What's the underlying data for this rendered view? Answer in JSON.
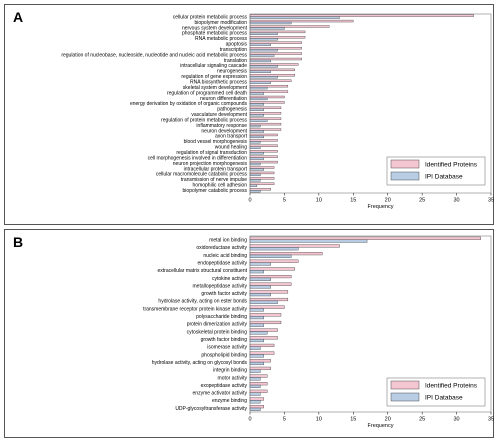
{
  "chart_data": [
    {
      "panel": "A",
      "type": "bar",
      "orientation": "horizontal",
      "xlabel": "Frequency",
      "xlim": [
        0,
        35
      ],
      "xticks": [
        0,
        5,
        10,
        15,
        20,
        25,
        30,
        35
      ],
      "legend_position": "bottom-right",
      "categories": [
        "cellular protein metabolic process",
        "biopolymer modification",
        "nervous system development",
        "phosphate metabolic process",
        "RNA metabolic process",
        "apoptosis",
        "transcription",
        "regulation of nucleobase, nucleoside, nucleotide and nucleic acid metabolic process",
        "translation",
        "intracellular signaling cascade",
        "neurogenesis",
        "regulation of gene expression",
        "RNA biosynthetic process",
        "skeletal system development",
        "regulation of programmed cell death",
        "neuron differentiation",
        "energy derivation by oxidation of organic compounds",
        "pathogenesis",
        "vasculature development",
        "regulation of protein metabolic process",
        "inflammatory response",
        "neuron development",
        "axon transport",
        "blood vessel morphogenesis",
        "wound healing",
        "regulation of signal transduction",
        "cell morphogenesis involved in differentiation",
        "neuron projection morphogenesis",
        "intracellular protein transport",
        "cellular macromolecule catabolic process",
        "transmission of nerve impulse",
        "homophilic cell adhesion",
        "biopolymer catabolic process"
      ],
      "series": [
        {
          "name": "Identified Proteins",
          "color": "#f4c6d2",
          "values": [
            32.5,
            15,
            11.5,
            8,
            8,
            7.5,
            7.5,
            7.5,
            7.5,
            7,
            6.5,
            6.5,
            6,
            5.5,
            5.5,
            5,
            5,
            4.5,
            4.5,
            4.5,
            4.5,
            4.5,
            4,
            4,
            4,
            4,
            4,
            4,
            3.5,
            3.5,
            3.5,
            3.5,
            3
          ]
        },
        {
          "name": "IPI Database",
          "color": "#b8cce4",
          "values": [
            13,
            6,
            5,
            4,
            4,
            3,
            4,
            3.5,
            3,
            4,
            3,
            4,
            3,
            2.5,
            2,
            2.5,
            2,
            2,
            2,
            2.5,
            1.5,
            2,
            2,
            1.5,
            1.5,
            2,
            2,
            1.5,
            2,
            1.5,
            1.5,
            1,
            1.5
          ]
        }
      ]
    },
    {
      "panel": "B",
      "type": "bar",
      "orientation": "horizontal",
      "xlabel": "Frequency",
      "xlim": [
        0,
        35
      ],
      "xticks": [
        0,
        5,
        10,
        15,
        20,
        25,
        30,
        35
      ],
      "legend_position": "bottom-right",
      "categories": [
        "metal ion binding",
        "oxidoreductase activity",
        "nucleic acid binding",
        "endopeptidase activity",
        "extracellular matrix structural constituent",
        "cytokine activity",
        "metallopeptidase activity",
        "growth factor activity",
        "hydrolase activity, acting on ester bonds",
        "transmembrane receptor protein kinase activity",
        "polysaccharide binding",
        "protein dimerization activity",
        "cytoskeletal protein binding",
        "growth factor binding",
        "isomerase activity",
        "phospholipid binding",
        "hydrolase activity, acting on glycosyl bonds",
        "integrin binding",
        "motor activity",
        "exopeptidase activity",
        "enzyme activator activity",
        "enzyme binding",
        "UDP-glycosyltransferase activity"
      ],
      "series": [
        {
          "name": "Identified Proteins",
          "color": "#f4c6d2",
          "values": [
            33.5,
            13,
            10.5,
            7,
            6.5,
            6,
            6,
            5.5,
            5.5,
            5,
            4.5,
            4.5,
            4,
            4,
            3.5,
            3.5,
            3,
            3,
            2.5,
            2.5,
            2.5,
            2,
            2
          ]
        },
        {
          "name": "IPI Database",
          "color": "#b8cce4",
          "values": [
            17,
            7,
            6,
            3,
            2,
            3,
            3,
            3,
            4,
            2,
            2,
            2,
            2.5,
            2,
            1.5,
            2,
            2,
            1.5,
            1.5,
            1.5,
            1.5,
            1.5,
            1.5
          ]
        }
      ]
    }
  ]
}
